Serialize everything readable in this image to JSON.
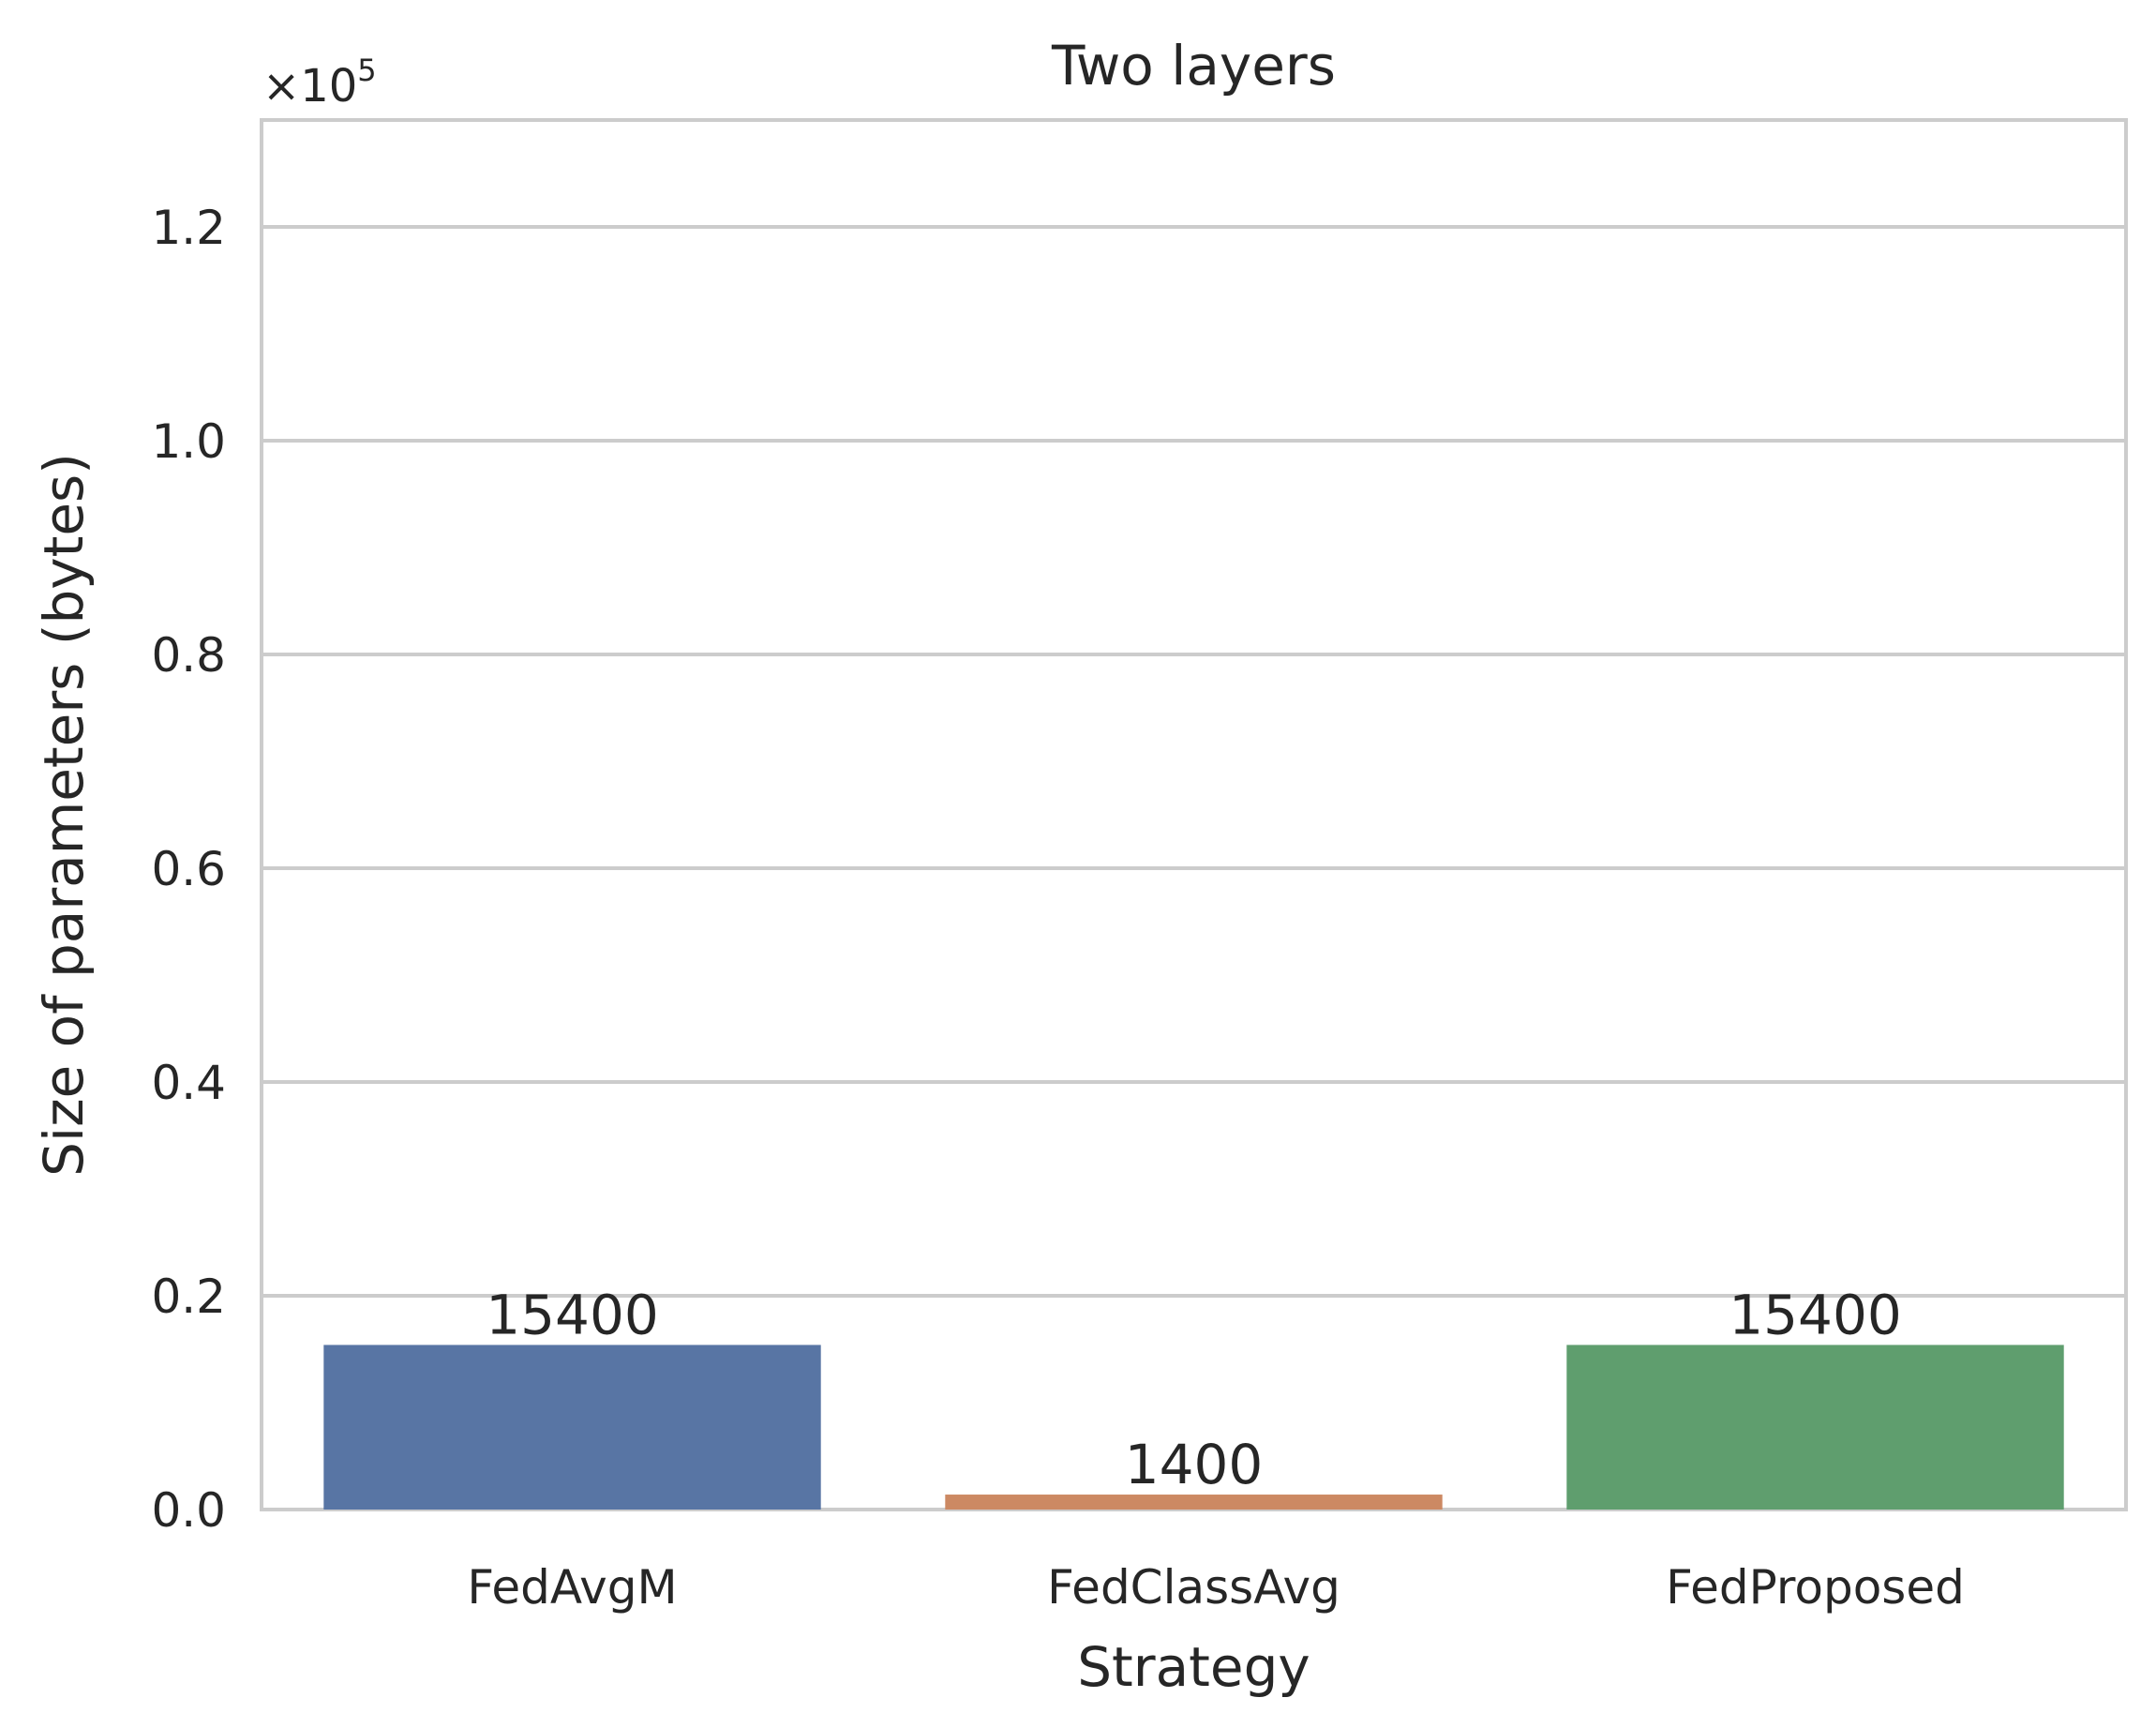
{
  "chart_data": {
    "type": "bar",
    "title": "Two layers",
    "xlabel": "Strategy",
    "ylabel": "Size of parameters (bytes)",
    "categories": [
      "FedAvgM",
      "FedClassAvg",
      "FedProposed"
    ],
    "values": [
      15400,
      1400,
      15400
    ],
    "data_labels": [
      "15400",
      "1400",
      "15400"
    ],
    "colors": [
      "#5875a4",
      "#cc8963",
      "#5f9e6e"
    ],
    "ylim": [
      0,
      130000
    ],
    "yticks": [
      0,
      20000,
      40000,
      60000,
      80000,
      100000,
      120000
    ],
    "ytick_labels": [
      "0.0",
      "0.2",
      "0.4",
      "0.6",
      "0.8",
      "1.0",
      "1.2"
    ],
    "y_offset_label": "×10",
    "y_offset_exponent": "5",
    "grid": "horizontal"
  }
}
